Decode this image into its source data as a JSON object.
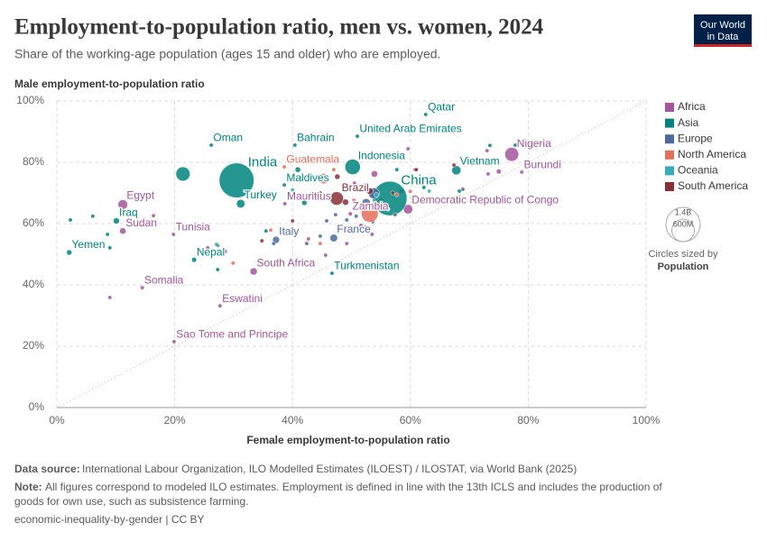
{
  "chart_data": {
    "type": "scatter",
    "title": "Employment-to-population ratio, men vs. women, 2024",
    "subtitle": "Share of the working-age population (ages 15 and older) who are employed.",
    "xlabel": "Female employment-to-population ratio",
    "ylabel": "Male employment-to-population ratio",
    "xlim": [
      0,
      100
    ],
    "ylim": [
      0,
      100
    ],
    "xticks": [
      {
        "value": 0,
        "label": "0%"
      },
      {
        "value": 20,
        "label": "20%"
      },
      {
        "value": 40,
        "label": "40%"
      },
      {
        "value": 60,
        "label": "60%"
      },
      {
        "value": 80,
        "label": "80%"
      },
      {
        "value": 100,
        "label": "100%"
      }
    ],
    "yticks": [
      {
        "value": 0,
        "label": "0%"
      },
      {
        "value": 20,
        "label": "20%"
      },
      {
        "value": 40,
        "label": "40%"
      },
      {
        "value": 60,
        "label": "60%"
      },
      {
        "value": 80,
        "label": "80%"
      },
      {
        "value": 100,
        "label": "100%"
      }
    ],
    "grid": true,
    "diagonal": true,
    "legend_position": "right",
    "size_legend": {
      "title": "Circles sized by",
      "variable": "Population",
      "ticks": [
        {
          "value": 1400000000,
          "label": "1.4B"
        },
        {
          "value": 600000000,
          "label": "600M"
        }
      ]
    },
    "series": [
      {
        "name": "Africa",
        "color": "#a2559c",
        "x": [
          77.2,
          78.9,
          11.2,
          11.2,
          59.6,
          49.8,
          19.8,
          33.4,
          14.5,
          27.7,
          19.9,
          38.7,
          73.2,
          73.0,
          70.1,
          53.9,
          59.6,
          60.8,
          16.4,
          9.0,
          25.6,
          28.6,
          45.6,
          49.2,
          53.5,
          58.5,
          55.1,
          51.6,
          42.7,
          50.5,
          75.0
        ],
        "y": [
          82.6,
          76.8,
          66.2,
          57.6,
          64.7,
          63.2,
          56.5,
          44.4,
          39.1,
          33.2,
          21.5,
          66.5,
          76.2,
          83.8,
          80.6,
          76.2,
          84.4,
          77.6,
          62.6,
          35.9,
          52.1,
          50.9,
          49.7,
          53.5,
          56.5,
          70.6,
          67.6,
          59.4,
          55.0,
          73.2,
          77.0
        ],
        "size": [
          230000000,
          13000000,
          112000000,
          48000000,
          105000000,
          20000000,
          12000000,
          61000000,
          18000000,
          1200000,
          230000,
          1300000,
          5000000,
          3000000,
          8000000,
          50000000,
          2000000,
          6000000,
          4000000,
          1000000,
          2000000,
          3000000,
          2000000,
          3000000,
          10000000,
          30000000,
          25000000,
          20000000,
          5000000,
          12000000,
          28000000
        ],
        "labels": [
          "Nigeria",
          "Burundi",
          "Egypt",
          "Sudan",
          "Democratic Republic of Congo",
          "Zambia",
          "Tunisia",
          "South Africa",
          "Somalia",
          "Eswatini",
          "Sao Tome and Principe",
          "Mauritius",
          null,
          null,
          null,
          null,
          null,
          null,
          null,
          null,
          null,
          null,
          null,
          null,
          null,
          null,
          null,
          null,
          null,
          null,
          null
        ]
      },
      {
        "name": "Asia",
        "color": "#00847e",
        "x": [
          62.6,
          51.0,
          40.4,
          26.2,
          30.5,
          50.2,
          38.6,
          67.8,
          56.5,
          31.2,
          10.1,
          2.1,
          23.3,
          46.7,
          21.4,
          2.3,
          6.1,
          8.6,
          9.0,
          27.3,
          27.3,
          53.6,
          62.3,
          77.8,
          68.3,
          35.5,
          42.0,
          40.9,
          57.7,
          73.5
        ],
        "y": [
          95.6,
          88.5,
          85.6,
          85.6,
          74.1,
          78.5,
          72.6,
          77.4,
          68.2,
          66.5,
          60.9,
          50.6,
          48.2,
          43.8,
          76.2,
          61.2,
          62.4,
          56.5,
          52.1,
          45.0,
          52.9,
          69.7,
          71.8,
          85.6,
          70.6,
          57.6,
          66.8,
          77.6,
          77.6,
          85.5
        ],
        "size": [
          2700000,
          10000000,
          1500000,
          4600000,
          1440000000,
          280000000,
          500000,
          100000000,
          1410000000,
          86000000,
          45000000,
          34000000,
          30000000,
          7000000,
          240000000,
          3000000,
          5000000,
          11000000,
          5000000,
          1000000,
          2000000,
          70000000,
          5000000,
          3000000,
          7000000,
          5000000,
          34000000,
          36000000,
          3000000,
          2000000
        ],
        "labels": [
          "Qatar",
          "United Arab Emirates",
          "Bahrain",
          "Oman",
          "India",
          "Indonesia",
          "Maldives",
          "Vietnam",
          "China",
          "Turkey",
          "Iraq",
          "Yemen",
          "Nepal",
          "Turkmenistan",
          null,
          null,
          null,
          null,
          null,
          null,
          null,
          null,
          null,
          null,
          null,
          null,
          null,
          null,
          null,
          null
        ]
      },
      {
        "name": "Europe",
        "color": "#4c6a9c",
        "x": [
          37.2,
          47.0,
          40.0,
          44.7,
          45.8,
          47.3,
          49.2,
          50.8,
          52.4,
          53.6,
          54.7,
          57.4,
          68.9,
          42.4,
          36.8,
          52.5,
          53.8
        ],
        "y": [
          54.7,
          55.3,
          57.0,
          55.9,
          60.9,
          62.9,
          61.2,
          62.4,
          58.8,
          60.6,
          64.7,
          62.9,
          71.2,
          53.5,
          53.5,
          66.8,
          69.9
        ],
        "size": [
          59000000,
          68000000,
          4000000,
          10000000,
          5000000,
          3000000,
          6000000,
          2000000,
          9000000,
          4000000,
          5000000,
          2000000,
          1000000,
          3000000,
          2000000,
          84000000,
          144000000
        ],
        "labels": [
          "Italy",
          "France",
          null,
          null,
          null,
          null,
          null,
          null,
          null,
          null,
          null,
          null,
          null,
          null,
          null,
          null,
          null
        ]
      },
      {
        "name": "North America",
        "color": "#e56e5a",
        "x": [
          38.6,
          45.3,
          47.0,
          36.3,
          29.9,
          44.7,
          53.1,
          50.4,
          57.7,
          60.0
        ],
        "y": [
          78.5,
          74.7,
          77.6,
          57.9,
          47.1,
          53.5,
          63.2,
          67.6,
          69.4,
          70.5
        ],
        "size": [
          18000000,
          128000000,
          3000000,
          2000000,
          1000000,
          2000000,
          335000000,
          5000000,
          10000000,
          4000000
        ],
        "labels": [
          "Guatemala",
          null,
          null,
          null,
          null,
          null,
          null,
          null,
          null,
          null
        ]
      },
      {
        "name": "Oceania",
        "color": "#38aaba",
        "x": [
          27.1,
          54.2,
          56.2,
          63.2,
          40.0
        ],
        "y": [
          53.2,
          69.4,
          64.7,
          70.6,
          71.0
        ],
        "size": [
          500000,
          27000000,
          5000000,
          10000000,
          1000000
        ],
        "labels": [
          null,
          null,
          null,
          null,
          null
        ]
      },
      {
        "name": "South America",
        "color": "#883039",
        "x": [
          47.5,
          44.7,
          47.6,
          53.1,
          57.0,
          61.0,
          67.4,
          34.8,
          40.0,
          49.0
        ],
        "y": [
          68.2,
          70.0,
          75.3,
          70.6,
          70.0,
          77.6,
          79.1,
          54.4,
          60.9,
          67.0
        ],
        "size": [
          216000000,
          20000000,
          34000000,
          52000000,
          8000000,
          12000000,
          18000000,
          3000000,
          6000000,
          46000000
        ],
        "labels": [
          "Brazil",
          null,
          null,
          null,
          null,
          null,
          null,
          null,
          null,
          null
        ]
      }
    ]
  },
  "logo": [
    "Our World",
    "in Data"
  ],
  "footer": {
    "source_label": "Data source:",
    "source": "International Labour Organization, ILO Modelled Estimates (ILOEST) / ILOSTAT, via World Bank (2025)",
    "note_label": "Note:",
    "note": [
      "All figures correspond to modeled ILO estimates. Employment is defined in line with the 13th ICLS and includes the production of",
      "goods for own use, such as subsistence farming."
    ],
    "license": "economic-inequality-by-gender | CC BY"
  }
}
